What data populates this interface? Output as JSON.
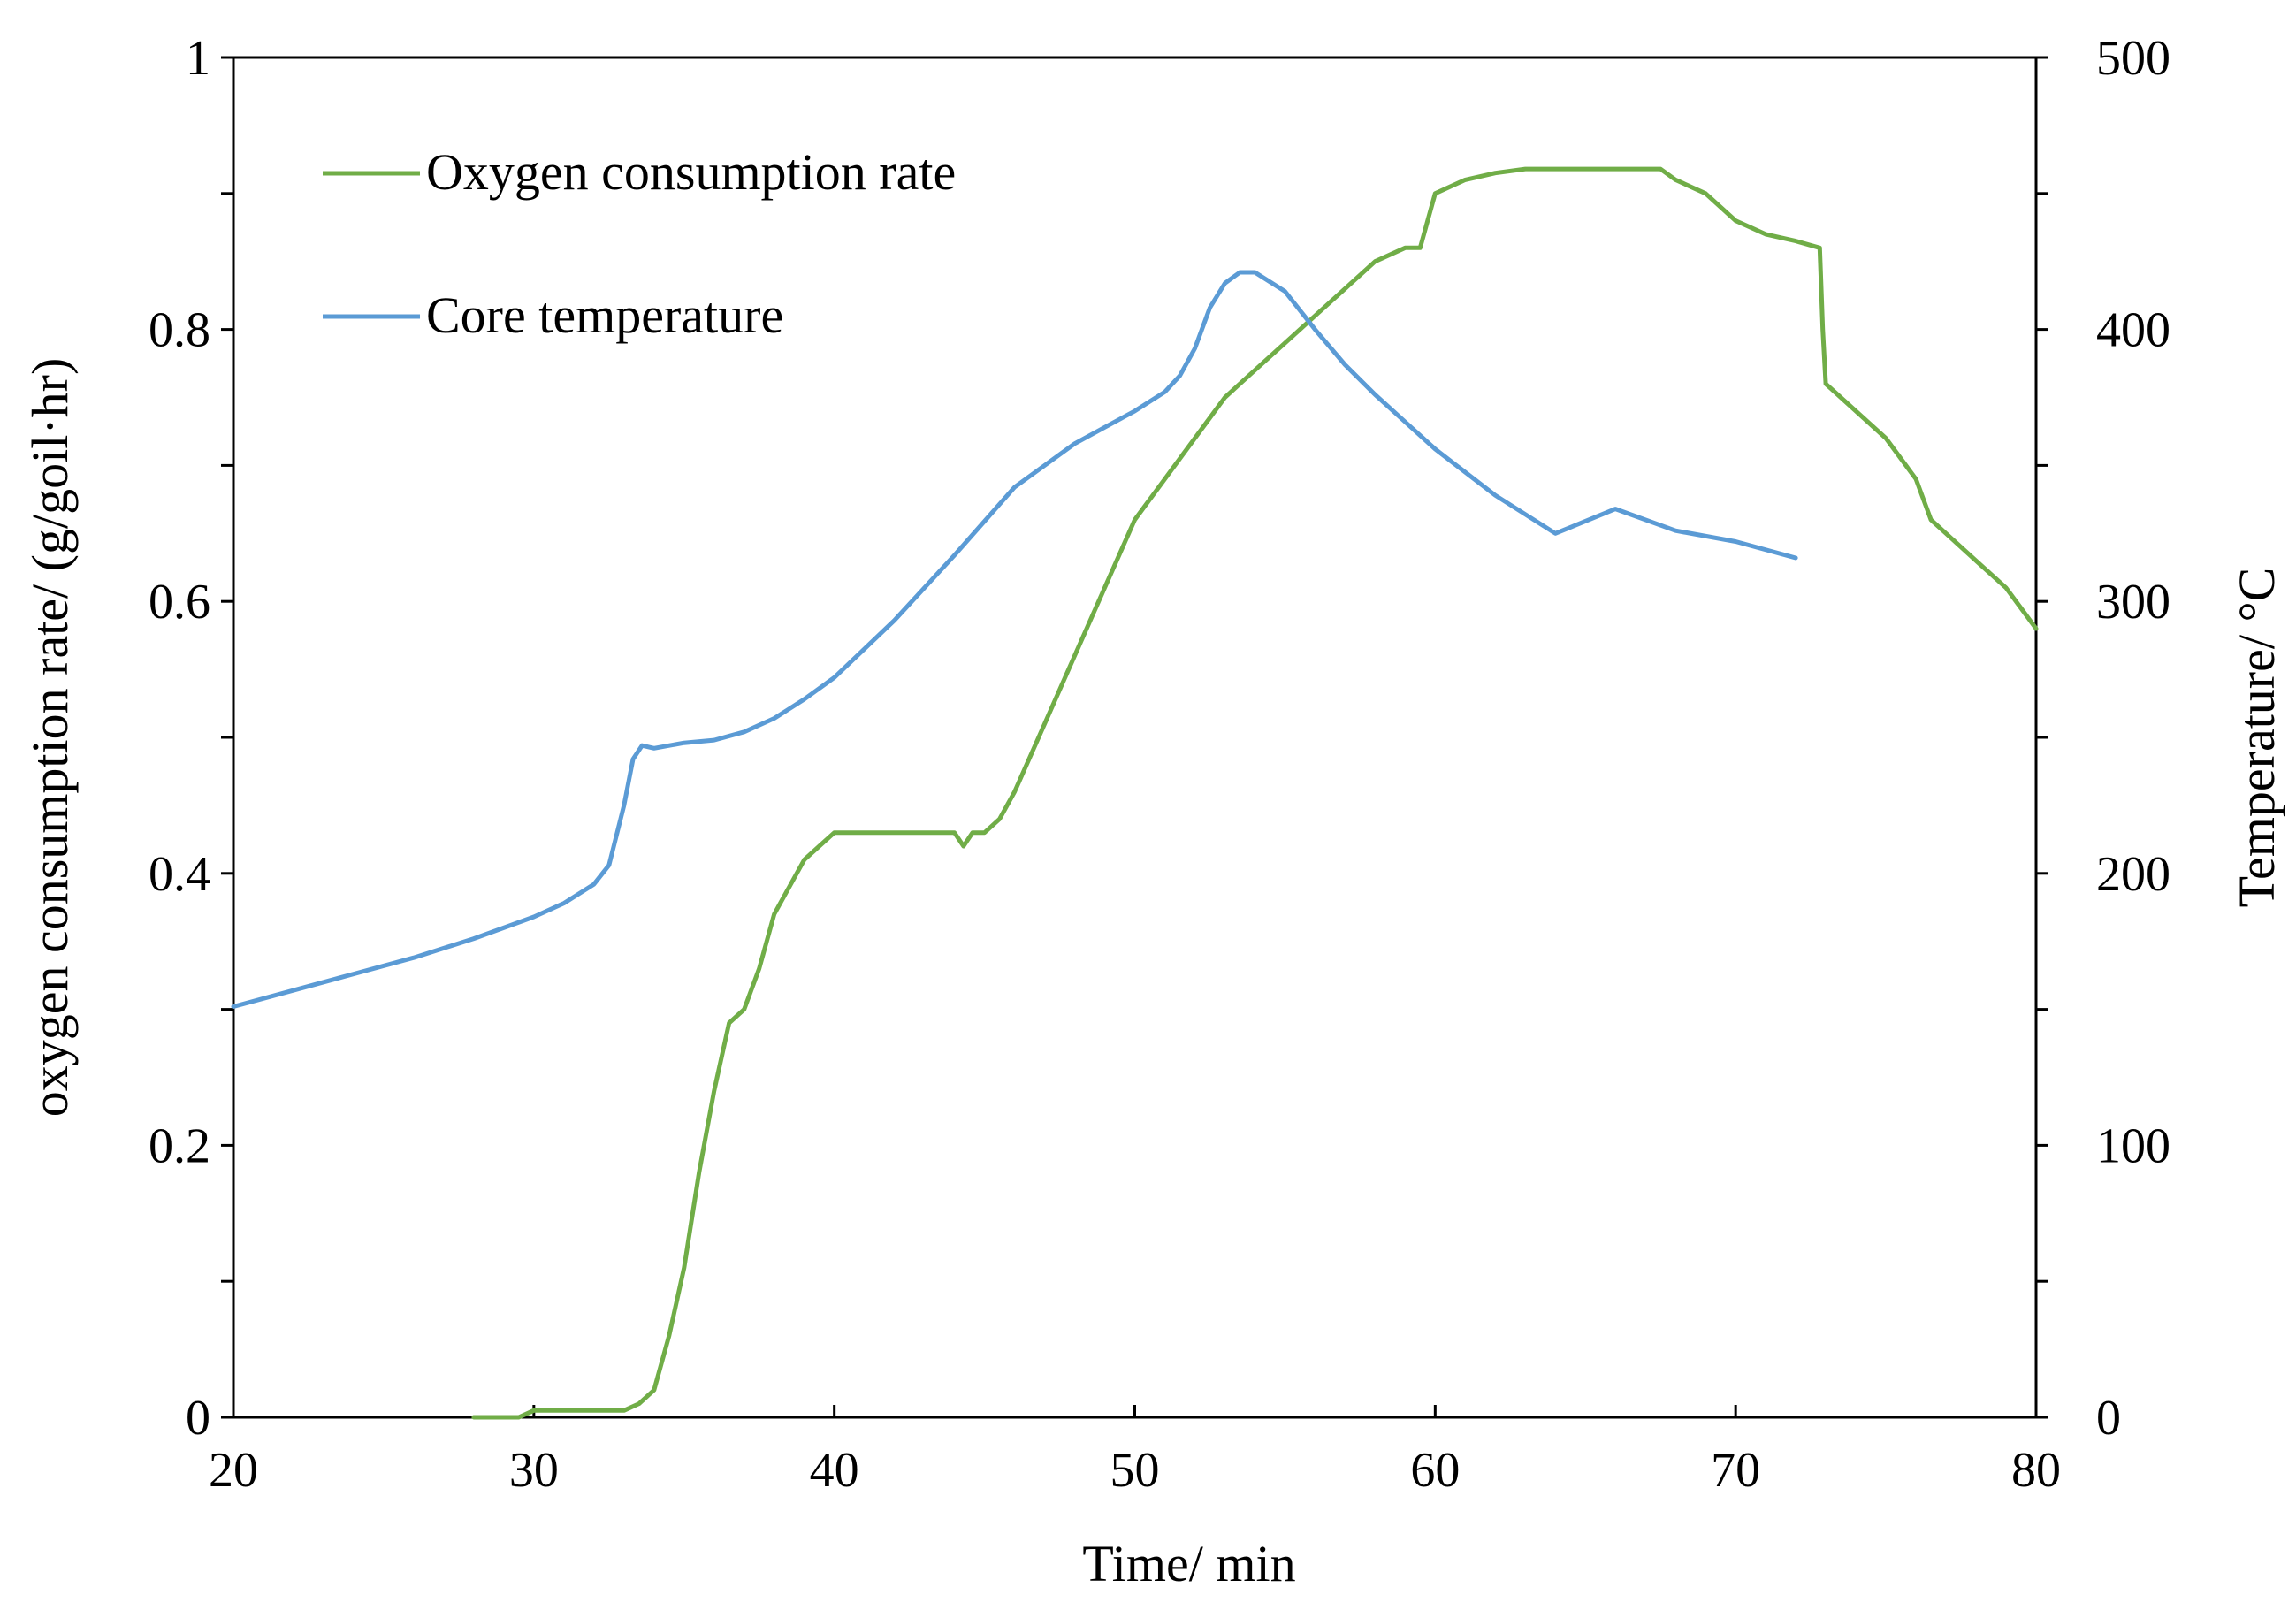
{
  "chart_data": {
    "type": "line",
    "title": "",
    "xlabel": "Time/ min",
    "ylabel_left": "oxygen consumption rate/ (g/goil·hr)",
    "ylabel_right": "Temperature/ °C",
    "xlim": [
      20,
      80
    ],
    "ylim_left": [
      0,
      1
    ],
    "ylim_right": [
      0,
      500
    ],
    "x_ticks": [
      "20",
      "30",
      "40",
      "50",
      "60",
      "70",
      "80"
    ],
    "y_left_ticks": [
      "0",
      "0.2",
      "0.4",
      "0.6",
      "0.8",
      "1"
    ],
    "y_right_ticks": [
      "0",
      "100",
      "200",
      "300",
      "400",
      "500"
    ],
    "grid": false,
    "legend_position": "top-left",
    "series": [
      {
        "name": "Oxygen consumption rate",
        "axis": "left",
        "color": "#70AD47",
        "x": [
          28,
          29.5,
          30,
          33,
          33.5,
          34,
          34.5,
          35,
          35.5,
          36,
          36.5,
          37,
          37.5,
          38,
          38.5,
          39,
          39.5,
          40,
          41,
          42,
          43,
          44,
          44.3,
          44.6,
          45,
          45.5,
          46,
          47,
          48,
          49,
          50,
          51,
          52,
          53,
          54,
          55,
          56,
          57,
          58,
          59,
          59.5,
          60,
          61,
          62,
          63,
          64,
          65,
          66,
          67,
          67.5,
          68,
          69,
          70,
          71,
          72,
          72.8,
          72.9,
          73,
          74,
          75,
          76,
          76.5,
          77,
          78,
          79,
          80
        ],
        "y": [
          0,
          0,
          0.005,
          0.005,
          0.01,
          0.02,
          0.06,
          0.11,
          0.18,
          0.24,
          0.29,
          0.3,
          0.33,
          0.37,
          0.39,
          0.41,
          0.42,
          0.43,
          0.43,
          0.43,
          0.43,
          0.43,
          0.42,
          0.43,
          0.43,
          0.44,
          0.46,
          0.51,
          0.56,
          0.61,
          0.66,
          0.69,
          0.72,
          0.75,
          0.77,
          0.79,
          0.81,
          0.83,
          0.85,
          0.86,
          0.86,
          0.9,
          0.91,
          0.915,
          0.918,
          0.918,
          0.918,
          0.918,
          0.918,
          0.918,
          0.91,
          0.9,
          0.88,
          0.87,
          0.865,
          0.86,
          0.8,
          0.76,
          0.74,
          0.72,
          0.69,
          0.66,
          0.65,
          0.63,
          0.61,
          0.58
        ]
      },
      {
        "name": "Core temperature",
        "axis": "right",
        "color": "#5B9BD5",
        "x": [
          20,
          22,
          24,
          26,
          28,
          30,
          31,
          32,
          32.5,
          33,
          33.3,
          33.6,
          34,
          35,
          36,
          37,
          38,
          39,
          40,
          42,
          44,
          46,
          47,
          48,
          49,
          50,
          51,
          51.5,
          52,
          52.5,
          53,
          53.5,
          54,
          55,
          56,
          57,
          58,
          59,
          60,
          62,
          64,
          66,
          68,
          70,
          72
        ],
        "y": [
          151,
          157,
          163,
          169,
          176,
          184,
          189,
          196,
          203,
          225,
          242,
          247,
          246,
          248,
          249,
          252,
          257,
          264,
          272,
          293,
          317,
          342,
          350,
          358,
          364,
          370,
          377,
          383,
          393,
          408,
          417,
          421,
          421,
          414,
          400,
          387,
          376,
          366,
          356,
          339,
          325,
          334,
          326,
          322,
          316
        ]
      }
    ]
  },
  "legend": {
    "oxygen_label": "Oxygen consumption rate",
    "core_label": "Core temperature"
  }
}
